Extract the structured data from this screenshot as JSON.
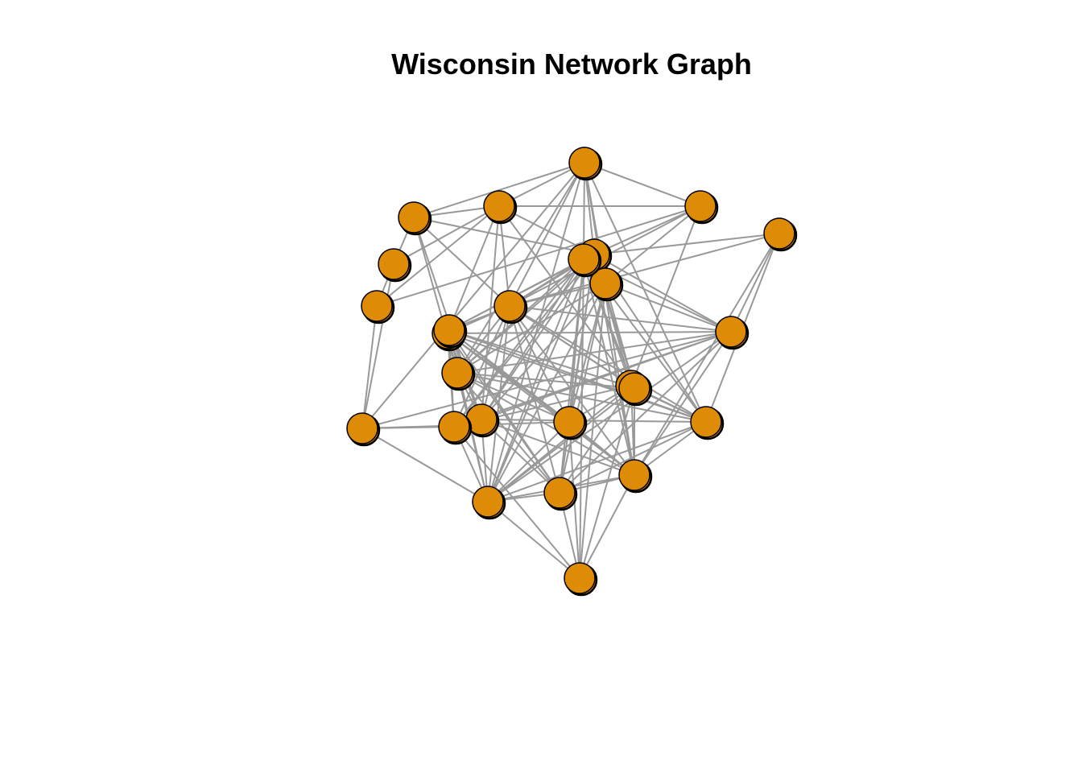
{
  "title": "Wisconsin Network Graph",
  "colors": {
    "node_fill": "#de8b07",
    "node_stroke": "#000000",
    "edge": "#999999",
    "background": "#ffffff"
  },
  "nodes": [
    "n1",
    "n2",
    "n3",
    "n4",
    "n5",
    "n6",
    "n7",
    "n8",
    "n9",
    "n10",
    "n11",
    "n12",
    "n13",
    "n14",
    "n15",
    "n16",
    "n17",
    "n18",
    "n19",
    "n20",
    "n21",
    "n22",
    "n23",
    "n24",
    "n25",
    "n26"
  ],
  "edges": [
    [
      "n1",
      "n2"
    ],
    [
      "n1",
      "n3"
    ],
    [
      "n1",
      "n6"
    ],
    [
      "n1",
      "n7"
    ],
    [
      "n1",
      "n9"
    ],
    [
      "n1",
      "n10"
    ],
    [
      "n1",
      "n13"
    ],
    [
      "n1",
      "n14"
    ],
    [
      "n1",
      "n19"
    ],
    [
      "n1",
      "n20"
    ],
    [
      "n1",
      "n22"
    ],
    [
      "n1",
      "n24"
    ],
    [
      "n2",
      "n3"
    ],
    [
      "n2",
      "n4"
    ],
    [
      "n2",
      "n5"
    ],
    [
      "n2",
      "n6"
    ],
    [
      "n2",
      "n7"
    ],
    [
      "n2",
      "n10"
    ],
    [
      "n2",
      "n11"
    ],
    [
      "n2",
      "n15"
    ],
    [
      "n2",
      "n16"
    ],
    [
      "n3",
      "n4"
    ],
    [
      "n3",
      "n6"
    ],
    [
      "n3",
      "n10"
    ],
    [
      "n3",
      "n14"
    ],
    [
      "n3",
      "n16"
    ],
    [
      "n4",
      "n5"
    ],
    [
      "n4",
      "n13"
    ],
    [
      "n5",
      "n7"
    ],
    [
      "n5",
      "n13"
    ],
    [
      "n6",
      "n7"
    ],
    [
      "n6",
      "n8"
    ],
    [
      "n6",
      "n9"
    ],
    [
      "n6",
      "n10"
    ],
    [
      "n6",
      "n12"
    ],
    [
      "n6",
      "n14"
    ],
    [
      "n6",
      "n15"
    ],
    [
      "n6",
      "n16"
    ],
    [
      "n6",
      "n17"
    ],
    [
      "n6",
      "n18"
    ],
    [
      "n6",
      "n19"
    ],
    [
      "n6",
      "n20"
    ],
    [
      "n6",
      "n21"
    ],
    [
      "n6",
      "n22"
    ],
    [
      "n6",
      "n24"
    ],
    [
      "n6",
      "n25"
    ],
    [
      "n6",
      "n26"
    ],
    [
      "n7",
      "n9"
    ],
    [
      "n7",
      "n10"
    ],
    [
      "n7",
      "n15"
    ],
    [
      "n8",
      "n10"
    ],
    [
      "n8",
      "n12"
    ],
    [
      "n8",
      "n19"
    ],
    [
      "n8",
      "n20"
    ],
    [
      "n9",
      "n10"
    ],
    [
      "n9",
      "n12"
    ],
    [
      "n9",
      "n14"
    ],
    [
      "n9",
      "n16"
    ],
    [
      "n9",
      "n18"
    ],
    [
      "n9",
      "n21"
    ],
    [
      "n9",
      "n22"
    ],
    [
      "n9",
      "n23"
    ],
    [
      "n9",
      "n24"
    ],
    [
      "n9",
      "n26"
    ],
    [
      "n10",
      "n11"
    ],
    [
      "n10",
      "n12"
    ],
    [
      "n10",
      "n14"
    ],
    [
      "n10",
      "n15"
    ],
    [
      "n10",
      "n16"
    ],
    [
      "n10",
      "n17"
    ],
    [
      "n10",
      "n18"
    ],
    [
      "n10",
      "n19"
    ],
    [
      "n10",
      "n20"
    ],
    [
      "n10",
      "n21"
    ],
    [
      "n10",
      "n22"
    ],
    [
      "n10",
      "n24"
    ],
    [
      "n10",
      "n25"
    ],
    [
      "n10",
      "n26"
    ],
    [
      "n11",
      "n12"
    ],
    [
      "n11",
      "n14"
    ],
    [
      "n11",
      "n16"
    ],
    [
      "n11",
      "n17"
    ],
    [
      "n11",
      "n18"
    ],
    [
      "n11",
      "n19"
    ],
    [
      "n11",
      "n20"
    ],
    [
      "n11",
      "n21"
    ],
    [
      "n12",
      "n13"
    ],
    [
      "n12",
      "n14"
    ],
    [
      "n12",
      "n16"
    ],
    [
      "n12",
      "n17"
    ],
    [
      "n12",
      "n20"
    ],
    [
      "n12",
      "n21"
    ],
    [
      "n12",
      "n22"
    ],
    [
      "n12",
      "n24"
    ],
    [
      "n13",
      "n17"
    ],
    [
      "n13",
      "n18"
    ],
    [
      "n13",
      "n22"
    ],
    [
      "n14",
      "n16"
    ],
    [
      "n14",
      "n18"
    ],
    [
      "n14",
      "n19"
    ],
    [
      "n14",
      "n20"
    ],
    [
      "n14",
      "n21"
    ],
    [
      "n14",
      "n22"
    ],
    [
      "n14",
      "n24"
    ],
    [
      "n14",
      "n26"
    ],
    [
      "n15",
      "n17"
    ],
    [
      "n15",
      "n18"
    ],
    [
      "n15",
      "n19"
    ],
    [
      "n15",
      "n20"
    ],
    [
      "n15",
      "n21"
    ],
    [
      "n15",
      "n22"
    ],
    [
      "n15",
      "n24"
    ],
    [
      "n15",
      "n26"
    ],
    [
      "n16",
      "n19"
    ],
    [
      "n16",
      "n20"
    ],
    [
      "n16",
      "n21"
    ],
    [
      "n16",
      "n22"
    ],
    [
      "n16",
      "n24"
    ],
    [
      "n16",
      "n25"
    ],
    [
      "n17",
      "n22"
    ],
    [
      "n17",
      "n23"
    ],
    [
      "n17",
      "n24"
    ],
    [
      "n17",
      "n25"
    ],
    [
      "n18",
      "n20"
    ],
    [
      "n18",
      "n22"
    ],
    [
      "n18",
      "n23"
    ],
    [
      "n18",
      "n24"
    ],
    [
      "n18",
      "n25"
    ],
    [
      "n19",
      "n20"
    ],
    [
      "n19",
      "n21"
    ],
    [
      "n19",
      "n22"
    ],
    [
      "n19",
      "n24"
    ],
    [
      "n19",
      "n25"
    ],
    [
      "n19",
      "n26"
    ],
    [
      "n20",
      "n21"
    ],
    [
      "n20",
      "n22"
    ],
    [
      "n20",
      "n23"
    ],
    [
      "n20",
      "n24"
    ],
    [
      "n20",
      "n25"
    ],
    [
      "n20",
      "n26"
    ],
    [
      "n21",
      "n22"
    ],
    [
      "n21",
      "n23"
    ],
    [
      "n21",
      "n24"
    ],
    [
      "n21",
      "n25"
    ],
    [
      "n22",
      "n23"
    ],
    [
      "n22",
      "n24"
    ],
    [
      "n22",
      "n25"
    ],
    [
      "n22",
      "n26"
    ],
    [
      "n23",
      "n24"
    ],
    [
      "n23",
      "n26"
    ],
    [
      "n24",
      "n25"
    ],
    [
      "n24",
      "n26"
    ],
    [
      "n25",
      "n26"
    ]
  ]
}
